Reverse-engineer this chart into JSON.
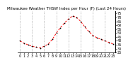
{
  "title": "Milwaukee Weather THSW Index per Hour (F) (Last 24 Hours)",
  "x_values": [
    0,
    1,
    2,
    3,
    4,
    5,
    6,
    7,
    8,
    9,
    10,
    11,
    12,
    13,
    14,
    15,
    16,
    17,
    18,
    19,
    20,
    21,
    22,
    23
  ],
  "y_values": [
    40,
    37,
    35,
    33,
    32,
    31,
    33,
    36,
    42,
    50,
    57,
    63,
    68,
    72,
    70,
    65,
    58,
    52,
    47,
    44,
    42,
    40,
    38,
    36
  ],
  "y_ticks": [
    25,
    30,
    35,
    40,
    45,
    50,
    55,
    60,
    65,
    70,
    75
  ],
  "ylim": [
    25,
    78
  ],
  "xlim": [
    -0.5,
    23.5
  ],
  "line_color": "#ff0000",
  "marker_color": "#000000",
  "bg_color": "#ffffff",
  "grid_color": "#888888",
  "title_fontsize": 4.0,
  "tick_fontsize": 3.5,
  "x_tick_labels": [
    "0",
    "1",
    "2",
    "3",
    "4",
    "5",
    "6",
    "7",
    "8",
    "9",
    "10",
    "11",
    "12",
    "13",
    "14",
    "15",
    "16",
    "17",
    "18",
    "19",
    "20",
    "21",
    "22",
    "23"
  ],
  "vgrid_positions": [
    0,
    3,
    6,
    9,
    12,
    15,
    18,
    21
  ]
}
